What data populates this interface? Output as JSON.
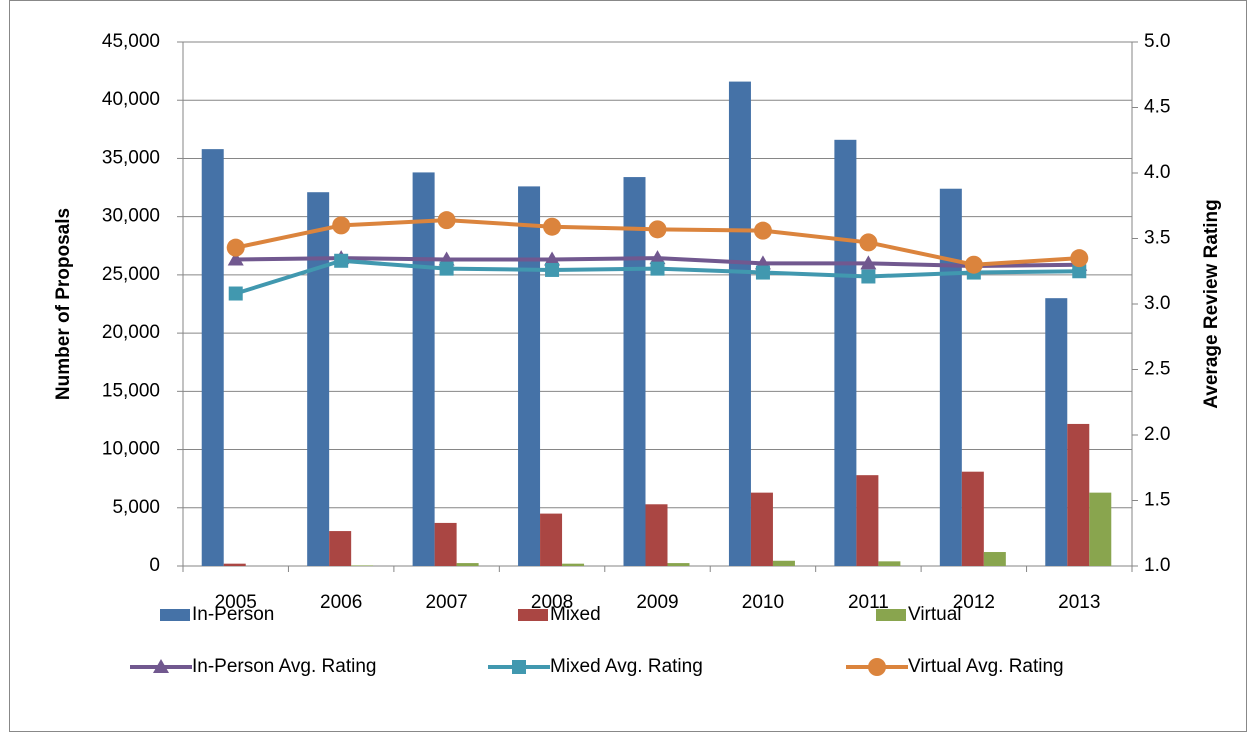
{
  "chart_data": {
    "type": "bar",
    "categories": [
      "2005",
      "2006",
      "2007",
      "2008",
      "2009",
      "2010",
      "2011",
      "2012",
      "2013"
    ],
    "y_label": "Number of Proposals",
    "y2_label": "Average Review Rating",
    "ylim": [
      0,
      45000
    ],
    "yticks": [
      0,
      {
        "value": 5000,
        "label": "5,000"
      },
      {
        "value": 10000,
        "label": "10,000"
      },
      {
        "value": 15000,
        "label": "15,000"
      },
      {
        "value": 20000,
        "label": "20,000"
      },
      {
        "value": 25000,
        "label": "25,000"
      },
      {
        "value": 30000,
        "label": "30,000"
      },
      {
        "value": 35000,
        "label": "35,000"
      },
      {
        "value": 40000,
        "label": "40,000"
      },
      {
        "value": 45000,
        "label": "45,000"
      }
    ],
    "y2lim": [
      1.0,
      5.0
    ],
    "y2ticks": [
      {
        "value": 1,
        "label": "1.0"
      },
      1.5,
      {
        "value": 2,
        "label": "2.0"
      },
      2.5,
      {
        "value": 3,
        "label": "3.0"
      },
      3.5,
      {
        "value": 4,
        "label": "4.0"
      },
      4.5,
      {
        "value": 5,
        "label": "5.0"
      }
    ],
    "grid": true,
    "series": [
      {
        "name": "In-Person",
        "type": "bar",
        "color": "#4572a7",
        "values": [
          35800,
          32100,
          33800,
          32600,
          33400,
          41600,
          36600,
          32400,
          23000
        ]
      },
      {
        "name": "Mixed",
        "type": "bar",
        "color": "#aa4643",
        "values": [
          200,
          3000,
          3700,
          4500,
          5300,
          6300,
          7800,
          8100,
          12200
        ]
      },
      {
        "name": "Virtual",
        "type": "bar",
        "color": "#89a54e",
        "values": [
          0,
          50,
          250,
          200,
          250,
          450,
          400,
          1200,
          6300
        ]
      },
      {
        "name": "In-Person Avg. Rating",
        "type": "line",
        "axis": "y2",
        "marker": "triangle",
        "color": "#71588f",
        "values": [
          3.34,
          3.35,
          3.34,
          3.34,
          3.35,
          3.31,
          3.31,
          3.29,
          3.3
        ]
      },
      {
        "name": "Mixed Avg. Rating",
        "type": "line",
        "axis": "y2",
        "marker": "square",
        "color": "#4198af",
        "values": [
          3.08,
          3.33,
          3.27,
          3.26,
          3.27,
          3.24,
          3.21,
          3.24,
          3.25
        ]
      },
      {
        "name": "Virtual Avg. Rating",
        "type": "line",
        "axis": "y2",
        "marker": "circle",
        "color": "#db843d",
        "values": [
          3.43,
          3.6,
          3.64,
          3.59,
          3.57,
          3.56,
          3.47,
          3.3,
          3.35
        ]
      }
    ]
  }
}
